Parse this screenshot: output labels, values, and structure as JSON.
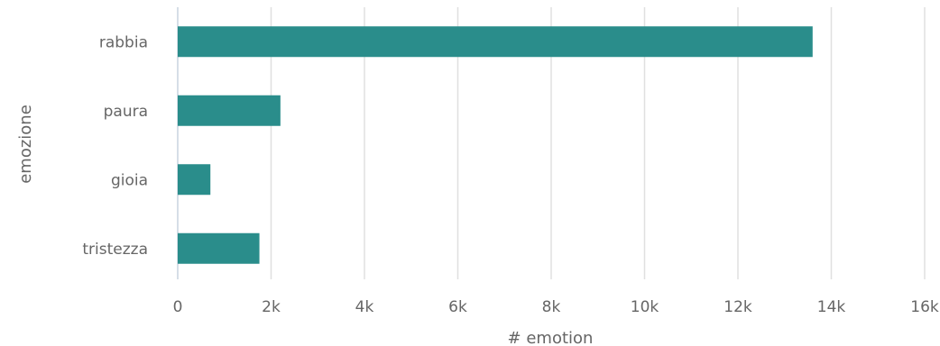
{
  "chart_data": {
    "type": "bar",
    "orientation": "horizontal",
    "categories": [
      "rabbia",
      "paura",
      "gioia",
      "tristezza"
    ],
    "values": [
      13600,
      2200,
      700,
      1750
    ],
    "xlabel": "# emotion",
    "ylabel": "emozione",
    "xlim": [
      0,
      16000
    ],
    "xticks": [
      0,
      2000,
      4000,
      6000,
      8000,
      10000,
      12000,
      14000,
      16000
    ],
    "xtick_labels": [
      "0",
      "2k",
      "4k",
      "6k",
      "8k",
      "10k",
      "12k",
      "14k",
      "16k"
    ],
    "grid": "vertical",
    "bar_color": "#2a8d8b",
    "grid_color": "#e0e0e0",
    "text_color": "#666666"
  }
}
